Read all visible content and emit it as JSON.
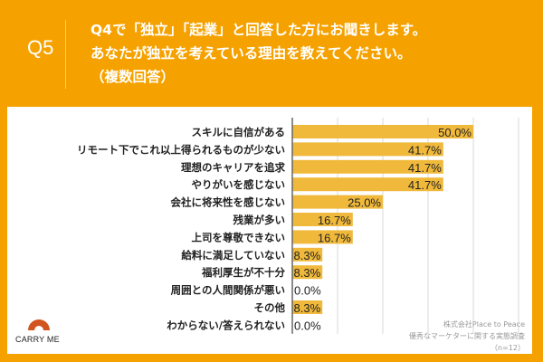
{
  "header": {
    "question_number": "Q5",
    "question_lines": [
      "Q4で「独立」「起業」と回答した方にお聞きします。",
      "あなたが独立を考えている理由を教えてください。",
      "（複数回答）"
    ]
  },
  "logo": {
    "icon": "carry-me-logo-icon",
    "text": "CARRY ME",
    "color": "#d2541e"
  },
  "source": {
    "lines": [
      "株式会社Place to Peace",
      "優秀なマーケターに関する実態調査",
      "（n=12）"
    ]
  },
  "colors": {
    "background": "#f5a200",
    "bar": "#f0b93b",
    "grid": "#d8d8d8",
    "axis": "#666666"
  },
  "chart_data": {
    "type": "bar",
    "orientation": "horizontal",
    "title": "あなたが独立を考えている理由を教えてください。（複数回答）",
    "xlabel": "",
    "ylabel": "",
    "xlim": [
      0,
      62.5
    ],
    "grid": true,
    "grid_step": 12.5,
    "categories": [
      "スキルに自信がある",
      "リモート下でこれ以上得られるものが少ない",
      "理想のキャリアを追求",
      "やりがいを感じない",
      "会社に将来性を感じない",
      "残業が多い",
      "上司を尊敬できない",
      "給料に満足していない",
      "福利厚生が不十分",
      "周囲との人間関係が悪い",
      "その他",
      "わからない/答えられない"
    ],
    "values": [
      50.0,
      41.7,
      41.7,
      41.7,
      25.0,
      16.7,
      16.7,
      8.3,
      8.3,
      0.0,
      8.3,
      0.0
    ],
    "value_labels": [
      "50.0%",
      "41.7%",
      "41.7%",
      "41.7%",
      "25.0%",
      "16.7%",
      "16.7%",
      "8.3%",
      "8.3%",
      "0.0%",
      "8.3%",
      "0.0%"
    ],
    "unit": "%"
  }
}
